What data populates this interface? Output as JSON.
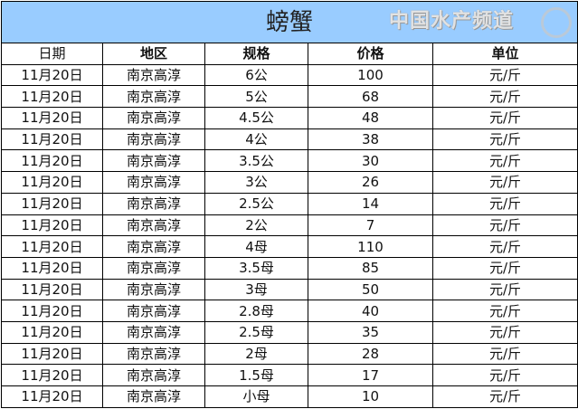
{
  "title": "螃蟹",
  "headers": [
    "日期",
    "地区",
    "规格",
    "价格",
    "单位"
  ],
  "rows": [
    [
      "11月20日",
      "南京高淳",
      "6公",
      "100",
      "元/斤"
    ],
    [
      "11月20日",
      "南京高淳",
      "5公",
      "68",
      "元/斤"
    ],
    [
      "11月20日",
      "南京高淳",
      "4.5公",
      "48",
      "元/斤"
    ],
    [
      "11月20日",
      "南京高淳",
      "4公",
      "38",
      "元/斤"
    ],
    [
      "11月20日",
      "南京高淳",
      "3.5公",
      "30",
      "元/斤"
    ],
    [
      "11月20日",
      "南京高淳",
      "3公",
      "26",
      "元/斤"
    ],
    [
      "11月20日",
      "南京高淳",
      "2.5公",
      "14",
      "元/斤"
    ],
    [
      "11月20日",
      "南京高淳",
      "2公",
      "7",
      "元/斤"
    ],
    [
      "11月20日",
      "南京高淳",
      "4母",
      "110",
      "元/斤"
    ],
    [
      "11月20日",
      "南京高淳",
      "3.5母",
      "85",
      "元/斤"
    ],
    [
      "11月20日",
      "南京高淳",
      "3母",
      "50",
      "元/斤"
    ],
    [
      "11月20日",
      "南京高淳",
      "2.8母",
      "40",
      "元/斤"
    ],
    [
      "11月20日",
      "南京高淳",
      "2.5母",
      "35",
      "元/斤"
    ],
    [
      "11月20日",
      "南京高淳",
      "2母",
      "28",
      "元/斤"
    ],
    [
      "11月20日",
      "南京高淳",
      "1.5母",
      "17",
      "元/斤"
    ],
    [
      "11月20日",
      "南京高淳",
      "小母",
      "10",
      "元/斤"
    ]
  ],
  "watermark": "中国水产频道",
  "colors": {
    "title_bg": "#99ccff"
  }
}
